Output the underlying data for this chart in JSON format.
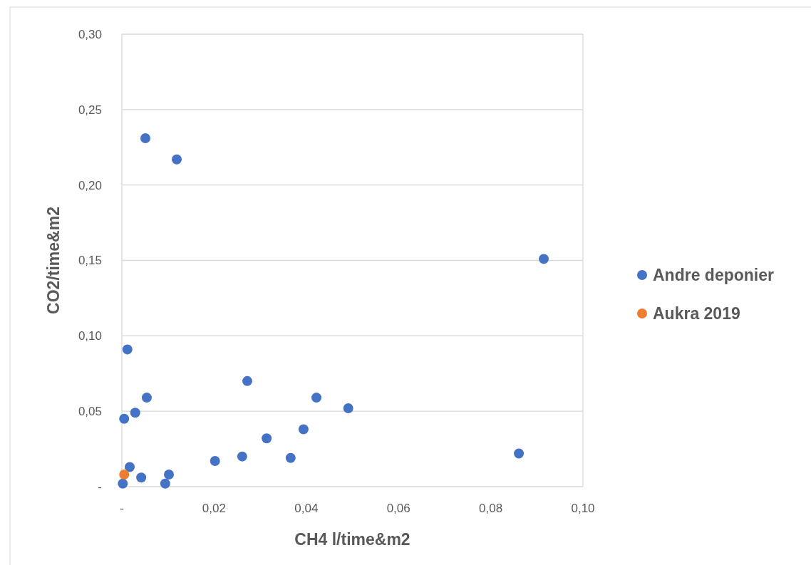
{
  "chart_data": {
    "type": "scatter",
    "xlabel": "CH4 l/time&m2",
    "ylabel": "CO2/time&m2",
    "xlim": [
      0,
      0.1
    ],
    "ylim": [
      0,
      0.3
    ],
    "xticks": [
      {
        "value": 0,
        "label": "-"
      },
      {
        "value": 0.02,
        "label": "0,02"
      },
      {
        "value": 0.04,
        "label": "0,04"
      },
      {
        "value": 0.06,
        "label": "0,06"
      },
      {
        "value": 0.08,
        "label": "0,08"
      },
      {
        "value": 0.1,
        "label": "0,10"
      }
    ],
    "yticks": [
      {
        "value": 0,
        "label": "-"
      },
      {
        "value": 0.05,
        "label": "0,05"
      },
      {
        "value": 0.1,
        "label": "0,10"
      },
      {
        "value": 0.15,
        "label": "0,15"
      },
      {
        "value": 0.2,
        "label": "0,20"
      },
      {
        "value": 0.25,
        "label": "0,25"
      },
      {
        "value": 0.3,
        "label": "0,30"
      }
    ],
    "grid": "y",
    "legend": "right",
    "marker": "circle",
    "series": [
      {
        "name": "Andre deponier",
        "color": "#4472c4",
        "x": [
          0.0051,
          0.0119,
          0.0915,
          0.0012,
          0.0272,
          0.0054,
          0.0422,
          0.0491,
          0.0029,
          0.0005,
          0.0394,
          0.0314,
          0.0202,
          0.0261,
          0.0366,
          0.0861,
          0.0017,
          0.0042,
          0.0102,
          0.0002,
          0.0094
        ],
        "values": [
          0.231,
          0.217,
          0.151,
          0.091,
          0.07,
          0.059,
          0.059,
          0.052,
          0.049,
          0.045,
          0.038,
          0.032,
          0.017,
          0.02,
          0.019,
          0.022,
          0.013,
          0.006,
          0.008,
          0.002,
          0.002
        ]
      },
      {
        "name": "Aukra 2019",
        "color": "#ed7d31",
        "x": [
          0.0005
        ],
        "values": [
          0.008
        ]
      }
    ]
  }
}
